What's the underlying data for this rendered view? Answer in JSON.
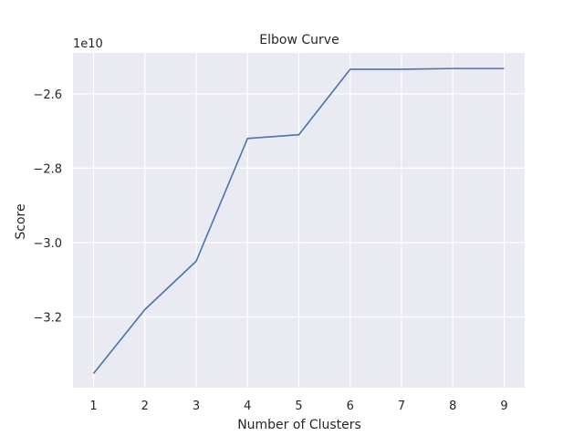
{
  "chart_data": {
    "type": "line",
    "title": "Elbow Curve",
    "xlabel": "Number of Clusters",
    "ylabel": "Score",
    "y_offset_label": "1e10",
    "x": [
      1,
      2,
      3,
      4,
      5,
      6,
      7,
      8,
      9
    ],
    "series": [
      {
        "values": [
          -3.352,
          -3.18,
          -3.05,
          -2.72,
          -2.71,
          -2.534,
          -2.534,
          -2.532,
          -2.532
        ]
      }
    ],
    "xlim": [
      0.6,
      9.4
    ],
    "ylim": [
      -3.39,
      -2.49
    ],
    "x_ticks": [
      1,
      2,
      3,
      4,
      5,
      6,
      7,
      8,
      9
    ],
    "y_ticks": [
      -3.2,
      -3.0,
      -2.8,
      -2.6
    ],
    "y_tick_labels": [
      "−3.2",
      "−3.0",
      "−2.8",
      "−2.6"
    ],
    "grid": true,
    "colors": {
      "plot_background": "#eaeaf2",
      "grid": "#ffffff",
      "line": "#4c72b0",
      "text": "#262626"
    }
  }
}
